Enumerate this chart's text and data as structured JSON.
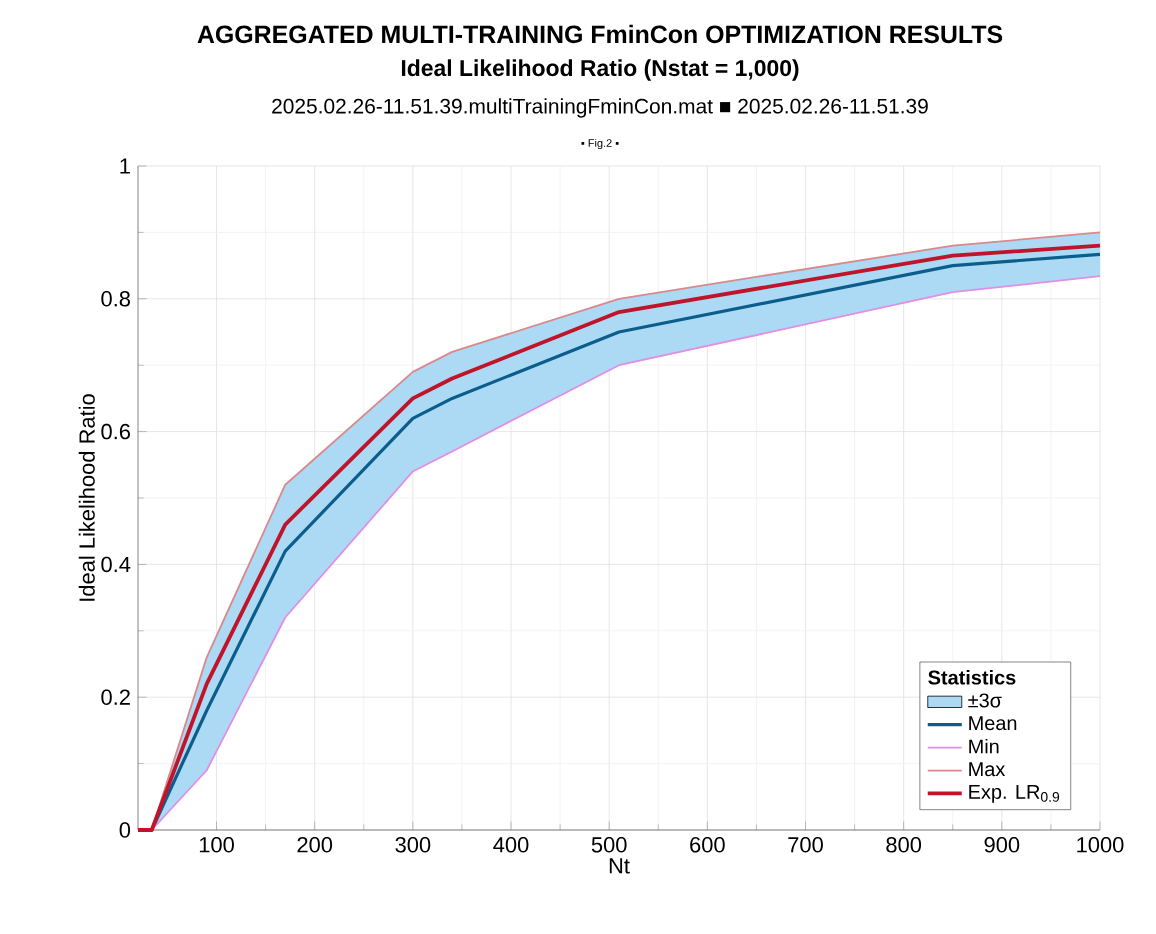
{
  "chart_data": {
    "type": "line",
    "title": "AGGREGATED MULTI-TRAINING FminCon OPTIMIZATION RESULTS",
    "subtitle": "Ideal Likelihood Ratio (Nstat = 1,000)",
    "annotations": [
      "2025.02.26-11.51.39.multiTrainingFminCon.mat ■ 2025.02.26-11.51.39",
      "▪ Fig.2 ▪"
    ],
    "xlabel": "Nt",
    "ylabel": "Ideal Likelihood Ratio",
    "legend_title": "Statistics",
    "x": [
      20,
      34,
      90,
      170,
      300,
      340,
      510,
      850,
      1000
    ],
    "series": [
      {
        "name": "±3σ",
        "type": "area",
        "color": "#acd9f3",
        "values": [
          null,
          null,
          null,
          null,
          null,
          null,
          null,
          null,
          null
        ],
        "lower": [
          0,
          0,
          0.09,
          0.32,
          0.54,
          0.57,
          0.7,
          0.81,
          0.834
        ],
        "upper": [
          0,
          0,
          0.26,
          0.52,
          0.69,
          0.72,
          0.8,
          0.88,
          0.9
        ]
      },
      {
        "name": "Mean",
        "color": "#0b5e8c",
        "values": [
          0,
          0,
          0.18,
          0.42,
          0.62,
          0.65,
          0.75,
          0.85,
          0.867
        ]
      },
      {
        "name": "Min",
        "color": "#e08ee6",
        "values": [
          0,
          0,
          0.09,
          0.32,
          0.54,
          0.57,
          0.7,
          0.81,
          0.834
        ]
      },
      {
        "name": "Max",
        "color": "#d9898b",
        "values": [
          0,
          0,
          0.26,
          0.52,
          0.69,
          0.72,
          0.8,
          0.88,
          0.9
        ]
      },
      {
        "name": "Exp. LR$_{0.9}$",
        "color": "#c0142a",
        "values": [
          0,
          0,
          0.22,
          0.46,
          0.65,
          0.68,
          0.78,
          0.865,
          0.88
        ]
      }
    ],
    "xlim": [
      20,
      1000
    ],
    "ylim": [
      0,
      1
    ],
    "xticks": [
      100,
      200,
      300,
      400,
      500,
      600,
      700,
      800,
      900,
      1000
    ],
    "yticks": [
      0,
      0.2,
      0.4,
      0.6,
      0.8,
      1
    ],
    "grid": true,
    "legend": "bottom right"
  }
}
